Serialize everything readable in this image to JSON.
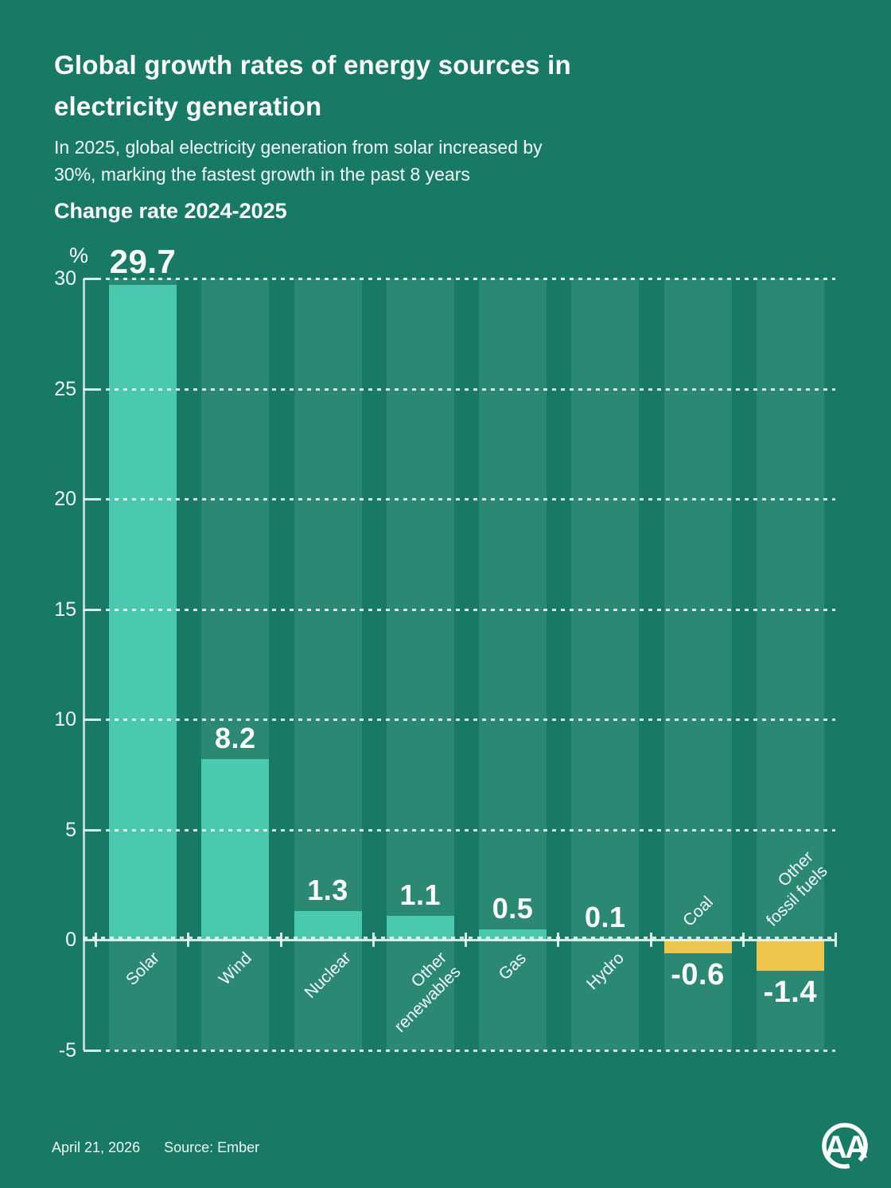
{
  "header": {
    "title_line1": "Global growth rates of energy sources in",
    "title_line2": "electricity generation",
    "subtitle_line1": "In 2025, global electricity generation from solar increased by",
    "subtitle_line2": "30%, marking the fastest growth in the past 8 years",
    "section_label": "Change rate 2024-2025"
  },
  "chart_data": {
    "type": "bar",
    "title": "Change rate 2024-2025",
    "unit_label": "%",
    "categories": [
      "Solar",
      "Wind",
      "Nuclear",
      "Other renewables",
      "Gas",
      "Hydro",
      "Coal",
      "Other fossil fuels"
    ],
    "category_lines": [
      [
        "Solar"
      ],
      [
        "Wind"
      ],
      [
        "Nuclear"
      ],
      [
        "Other",
        "renewables"
      ],
      [
        "Gas"
      ],
      [
        "Hydro"
      ],
      [
        "Coal"
      ],
      [
        "Other",
        "fossil fuels"
      ]
    ],
    "values": [
      29.7,
      8.2,
      1.3,
      1.1,
      0.5,
      0.1,
      -0.6,
      -1.4
    ],
    "value_labels": [
      "29.7",
      "8.2",
      "1.3",
      "1.1",
      "0.5",
      "0.1",
      "-0.6",
      "-1.4"
    ],
    "ylim": [
      -5,
      30
    ],
    "yticks": [
      30,
      25,
      20,
      15,
      10,
      5,
      0,
      -5
    ],
    "grid": "horizontal dashed",
    "legend": "none",
    "colors": {
      "background": "#187a64",
      "column_band": "#2b8973",
      "bar_positive": "#4ac9ae",
      "bar_negative": "#eec64d",
      "grid_line": "rgba(236,248,244,0.9)",
      "text": "#ffffff"
    }
  },
  "footer": {
    "date": "April 21, 2026",
    "source": "Source: Ember",
    "logo_text": "AA"
  }
}
